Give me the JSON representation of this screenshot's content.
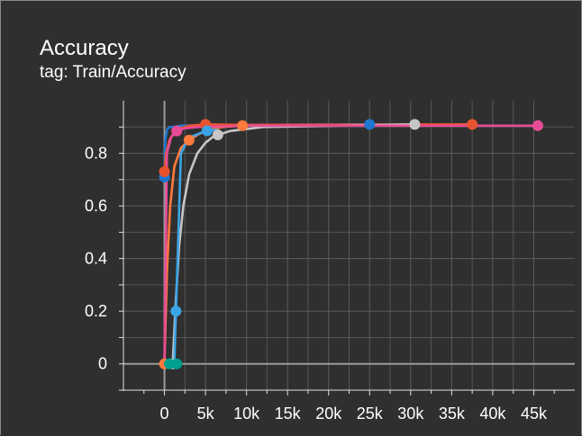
{
  "card": {
    "title": "Accuracy",
    "subtitle": "tag: Train/Accuracy"
  },
  "chart_data": {
    "type": "line",
    "title": "Accuracy",
    "subtitle": "tag: Train/Accuracy",
    "xlabel": "",
    "ylabel": "",
    "xlim": [
      -5000,
      50000
    ],
    "ylim": [
      -0.1,
      1.0
    ],
    "x_ticks": [
      0,
      5000,
      10000,
      15000,
      20000,
      25000,
      30000,
      35000,
      40000,
      45000
    ],
    "x_tick_labels": [
      "0",
      "5k",
      "10k",
      "15k",
      "20k",
      "25k",
      "30k",
      "35k",
      "40k",
      "45k"
    ],
    "y_ticks": [
      0,
      0.2,
      0.4,
      0.6,
      0.8
    ],
    "y_tick_labels": [
      "0",
      "0.2",
      "0.4",
      "0.6",
      "0.8"
    ],
    "grid": true,
    "legend": "none",
    "series": [
      {
        "color": "#1f77d0",
        "x": [
          0,
          100,
          300,
          600,
          1000,
          2000,
          5000,
          10000,
          25000
        ],
        "y": [
          0.71,
          0.85,
          0.89,
          0.9,
          0.9,
          0.905,
          0.907,
          0.908,
          0.91
        ],
        "markers": [
          0,
          25000
        ]
      },
      {
        "color": "#e8532f",
        "x": [
          0,
          200,
          600,
          1200,
          2000,
          3000,
          5000,
          10000,
          37500
        ],
        "y": [
          0.73,
          0.8,
          0.85,
          0.88,
          0.895,
          0.905,
          0.91,
          0.908,
          0.91
        ],
        "markers": [
          0,
          5000,
          37500
        ]
      },
      {
        "color": "#ff7a3d",
        "x": [
          0,
          300,
          700,
          1200,
          2000,
          3000,
          4000,
          5000,
          7000,
          9500
        ],
        "y": [
          0.0,
          0.35,
          0.6,
          0.75,
          0.82,
          0.85,
          0.87,
          0.885,
          0.9,
          0.905
        ],
        "markers": [
          0,
          3000,
          9500
        ]
      },
      {
        "color": "#c6c6c6",
        "x": [
          1000,
          1400,
          1800,
          2300,
          3000,
          4000,
          5000,
          6000,
          8000,
          12000,
          30500
        ],
        "y": [
          0.0,
          0.25,
          0.45,
          0.6,
          0.72,
          0.8,
          0.84,
          0.865,
          0.885,
          0.9,
          0.91
        ],
        "markers": [
          1000,
          6500,
          30500
        ]
      },
      {
        "color": "#e84b96",
        "x": [
          0,
          300,
          800,
          1500,
          2500,
          4000,
          6000,
          10000,
          20000,
          45500
        ],
        "y": [
          0.0,
          0.8,
          0.86,
          0.885,
          0.895,
          0.9,
          0.902,
          0.905,
          0.905,
          0.905
        ],
        "markers": [
          1500,
          45500
        ]
      },
      {
        "color": "#009f8f",
        "x": [
          600,
          1500
        ],
        "y": [
          0.0,
          0.0
        ],
        "markers": [
          600,
          1500
        ]
      },
      {
        "color": "#3aa4e6",
        "x": [
          1200,
          2000,
          3000,
          5000,
          6500
        ],
        "y": [
          0.0,
          0.8,
          0.86,
          0.885,
          0.89
        ],
        "markers": [
          1400,
          5200
        ]
      }
    ]
  }
}
